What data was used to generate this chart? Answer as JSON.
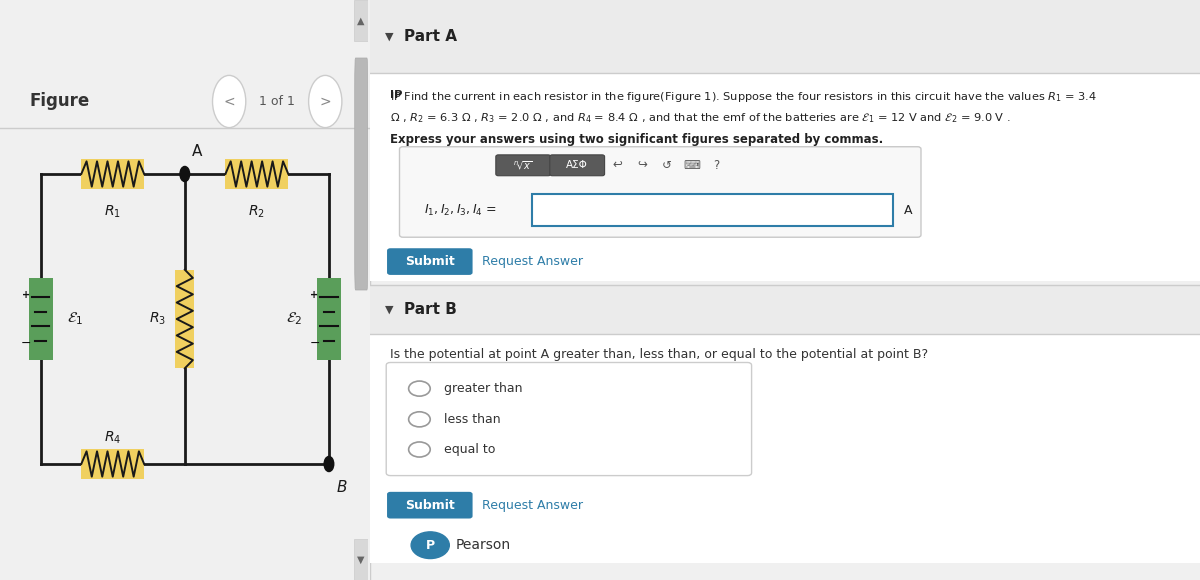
{
  "bg_color": "#f5f5f5",
  "left_panel_bg": "#ffffff",
  "right_panel_bg": "#ffffff",
  "divider_color": "#cccccc",
  "figure_label": "Figure",
  "nav_text": "1 of 1",
  "part_a_title": "Part A",
  "part_b_title": "Part B",
  "express_text": "Express your answers using two significant figures separated by commas.",
  "input_label": "$I_1, I_2, I_3, I_4$ =",
  "unit_label": "A",
  "submit_color": "#2e7da8",
  "submit_text": "Submit",
  "request_answer_text": "Request Answer",
  "part_b_question": "Is the potential at point A greater than, less than, or equal to the potential at point B?",
  "radio_options": [
    "greater than",
    "less than",
    "equal to"
  ],
  "resistor_color": "#f0d060",
  "battery_color": "#5a9e5a",
  "wire_color": "#1a1a1a",
  "dot_color": "#111111",
  "pearson_text": "Pearson",
  "toolbar_bg": "#888888"
}
